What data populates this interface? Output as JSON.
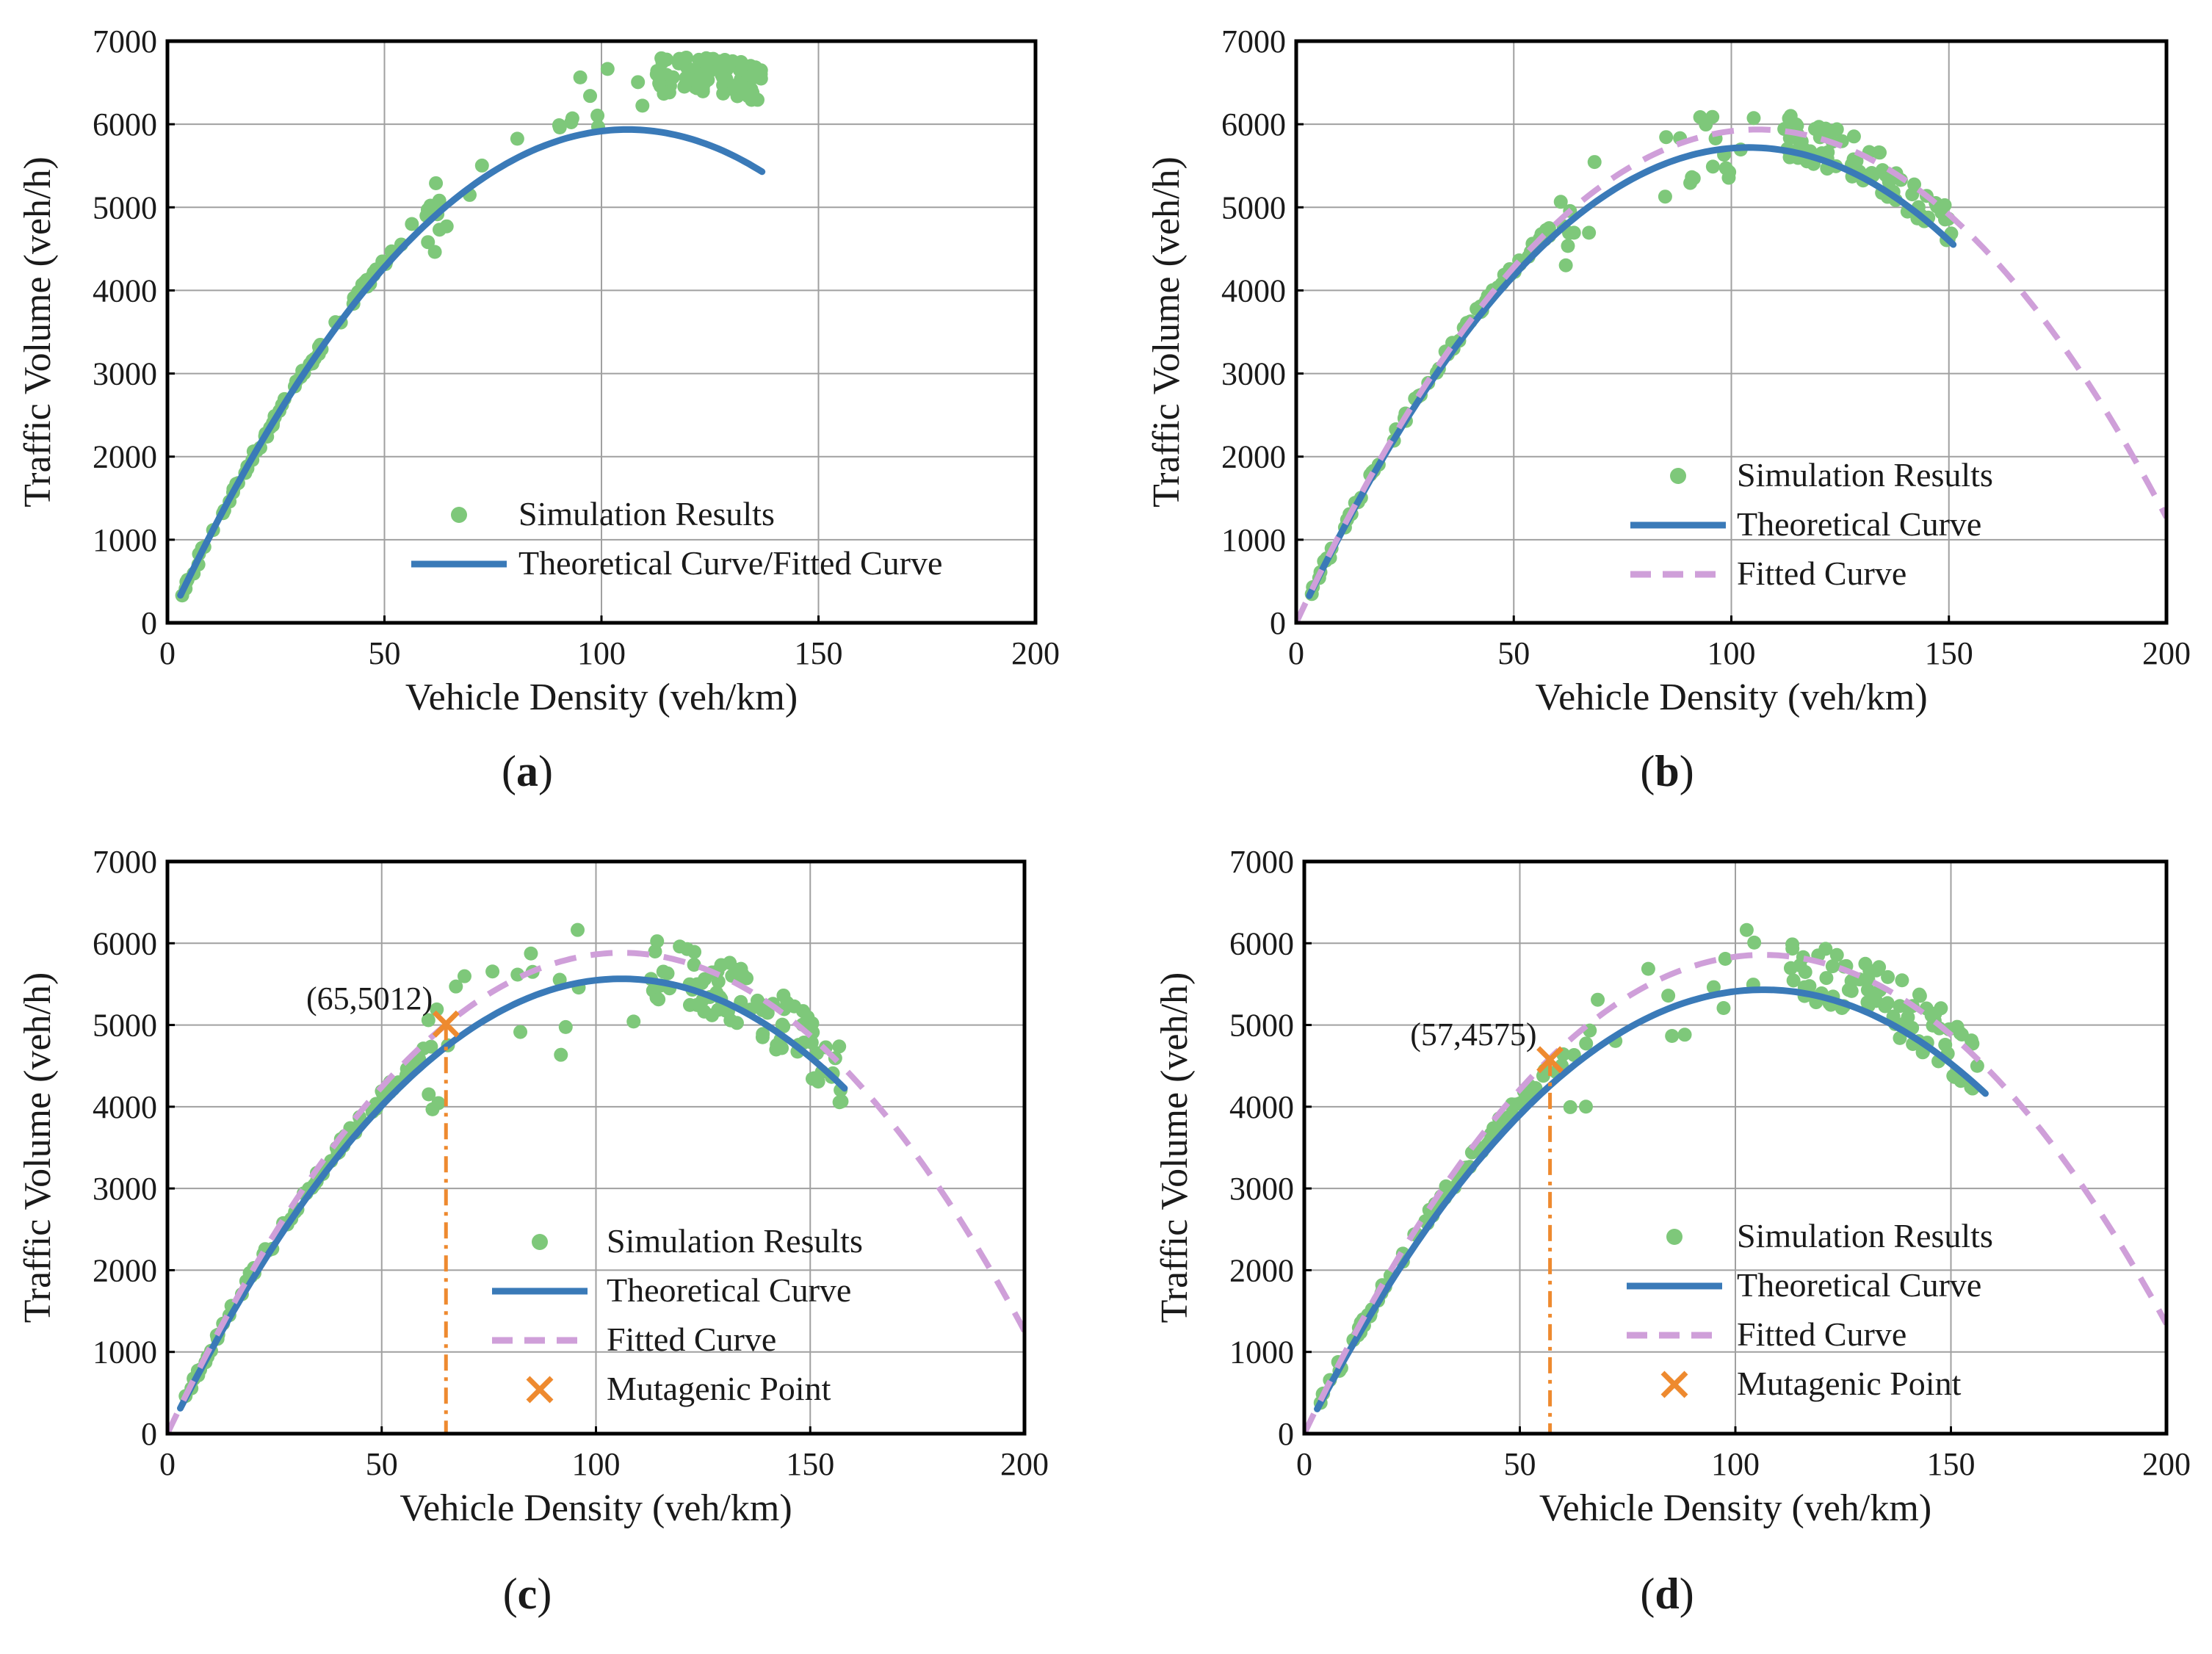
{
  "colors": {
    "scatter": "#7ec87a",
    "theoretical": "#3a7ab8",
    "fitted": "#cf9fd9",
    "mutagenic": "#ee8a2f",
    "grid": "#a0a0a0",
    "frame": "#000000"
  },
  "chart_data": [
    {
      "id": "a",
      "type": "scatter",
      "panel_label": "(a)",
      "panel_letter": "a",
      "xlabel": "Vehicle Density (veh/km)",
      "ylabel": "Traffic Volume (veh/h)",
      "xlim": [
        0,
        200
      ],
      "ylim": [
        0,
        7000
      ],
      "xticks": [
        0,
        50,
        100,
        150,
        200
      ],
      "yticks": [
        0,
        1000,
        2000,
        3000,
        4000,
        5000,
        6000,
        7000
      ],
      "grid": true,
      "legend_position": "bottom-right",
      "series": [
        {
          "name": "Simulation Results",
          "kind": "scatter",
          "color_key": "scatter",
          "seed": 11,
          "x_range": [
            3,
            137
          ],
          "vf": 110,
          "kj": 240,
          "noise_low": 60,
          "noise_high": 220,
          "n": 190
        },
        {
          "name": "Theoretical Curve/Fitted Curve",
          "kind": "line",
          "style": "solid",
          "color_key": "theoretical",
          "vf": 112,
          "kj": 212,
          "x_range": [
            3,
            137
          ]
        }
      ]
    },
    {
      "id": "b",
      "type": "scatter",
      "panel_label": "(b)",
      "panel_letter": "b",
      "xlabel": "Vehicle Density (veh/km)",
      "ylabel": "Traffic Volume (veh/h)",
      "xlim": [
        0,
        200
      ],
      "ylim": [
        0,
        7000
      ],
      "xticks": [
        0,
        50,
        100,
        150,
        200
      ],
      "yticks": [
        0,
        1000,
        2000,
        3000,
        4000,
        5000,
        6000,
        7000
      ],
      "grid": true,
      "legend_position": "bottom-right",
      "series": [
        {
          "name": "Simulation Results",
          "kind": "scatter",
          "color_key": "scatter",
          "seed": 23,
          "x_range": [
            3,
            151
          ],
          "vf": 112,
          "kj": 210,
          "noise_low": 60,
          "noise_high": 260,
          "n": 180
        },
        {
          "name": "Theoretical Curve",
          "kind": "line",
          "style": "solid",
          "color_key": "theoretical",
          "vf": 110,
          "kj": 208,
          "x_range": [
            3,
            151
          ]
        },
        {
          "name": "Fitted Curve",
          "kind": "line",
          "style": "dashed",
          "color_key": "fitted",
          "vf": 112,
          "kj": 212,
          "x_range": [
            0,
            200
          ]
        }
      ]
    },
    {
      "id": "c",
      "type": "scatter",
      "panel_label": "(c)",
      "panel_letter": "c",
      "xlabel": "Vehicle Density (veh/km)",
      "ylabel": "Traffic Volume (veh/h)",
      "xlim": [
        0,
        200
      ],
      "ylim": [
        0,
        7000
      ],
      "xticks": [
        0,
        50,
        100,
        150,
        200
      ],
      "yticks": [
        0,
        1000,
        2000,
        3000,
        4000,
        5000,
        6000,
        7000
      ],
      "grid": true,
      "legend_position": "bottom-right",
      "mutagenic_point": {
        "x": 65,
        "y": 5012,
        "label": "(65,5012)"
      },
      "series": [
        {
          "name": "Simulation Results",
          "kind": "scatter",
          "color_key": "scatter",
          "seed": 37,
          "x_range": [
            3,
            158
          ],
          "vf": 108,
          "kj": 212,
          "noise_low": 80,
          "noise_high": 380,
          "n": 190
        },
        {
          "name": "Theoretical Curve",
          "kind": "line",
          "style": "solid",
          "color_key": "theoretical",
          "vf": 105,
          "kj": 212,
          "x_range": [
            3,
            158
          ]
        },
        {
          "name": "Fitted Curve",
          "kind": "line",
          "style": "dashed",
          "color_key": "fitted",
          "vf": 111,
          "kj": 212,
          "x_range": [
            0,
            200
          ]
        },
        {
          "name": "Mutagenic Point",
          "kind": "marker",
          "color_key": "mutagenic"
        }
      ]
    },
    {
      "id": "d",
      "type": "scatter",
      "panel_label": "(d)",
      "panel_letter": "d",
      "xlabel": "Vehicle Density (veh/km)",
      "ylabel": "Traffic Volume (veh/h)",
      "xlim": [
        0,
        200
      ],
      "ylim": [
        0,
        7000
      ],
      "xticks": [
        0,
        50,
        100,
        150,
        200
      ],
      "yticks": [
        0,
        1000,
        2000,
        3000,
        4000,
        5000,
        6000,
        7000
      ],
      "grid": true,
      "legend_position": "bottom-right",
      "mutagenic_point": {
        "x": 57,
        "y": 4575,
        "label": "(57,4575)"
      },
      "series": [
        {
          "name": "Simulation Results",
          "kind": "scatter",
          "color_key": "scatter",
          "seed": 53,
          "x_range": [
            3,
            158
          ],
          "vf": 106,
          "kj": 214,
          "noise_low": 80,
          "noise_high": 380,
          "n": 190
        },
        {
          "name": "Theoretical Curve",
          "kind": "line",
          "style": "solid",
          "color_key": "theoretical",
          "vf": 102,
          "kj": 213,
          "x_range": [
            3,
            158
          ]
        },
        {
          "name": "Fitted Curve",
          "kind": "line",
          "style": "dashed",
          "color_key": "fitted",
          "vf": 110,
          "kj": 213,
          "x_range": [
            0,
            200
          ]
        },
        {
          "name": "Mutagenic Point",
          "kind": "marker",
          "color_key": "mutagenic"
        }
      ]
    }
  ]
}
